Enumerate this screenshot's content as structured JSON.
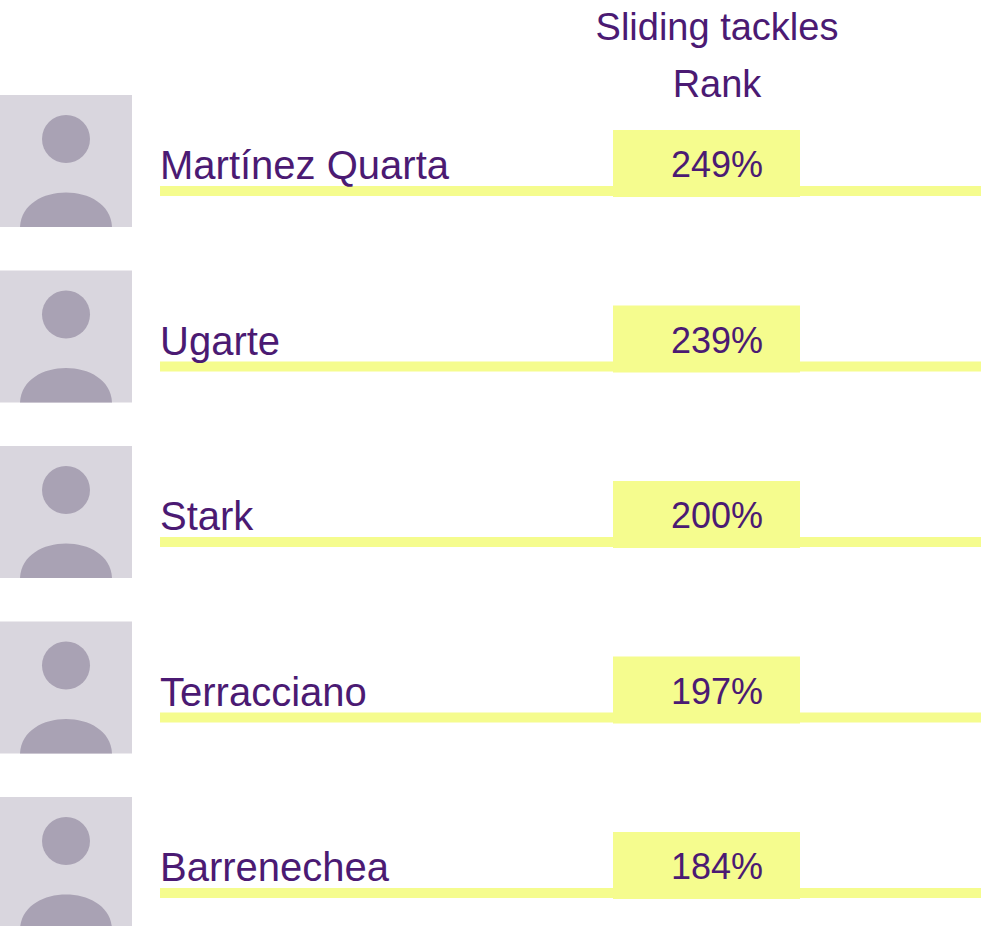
{
  "chart_data": {
    "type": "table",
    "title": "Sliding tackles Rank",
    "categories": [
      "Martínez Quarta",
      "Ugarte",
      "Stark",
      "Terracciano",
      "Barrenechea"
    ],
    "values": [
      249,
      239,
      200,
      197,
      184
    ],
    "value_labels": [
      "249%",
      "239%",
      "200%",
      "197%",
      "184%"
    ],
    "data_labels": true,
    "tick_labels": false,
    "color": "#f5fc8e"
  }
}
